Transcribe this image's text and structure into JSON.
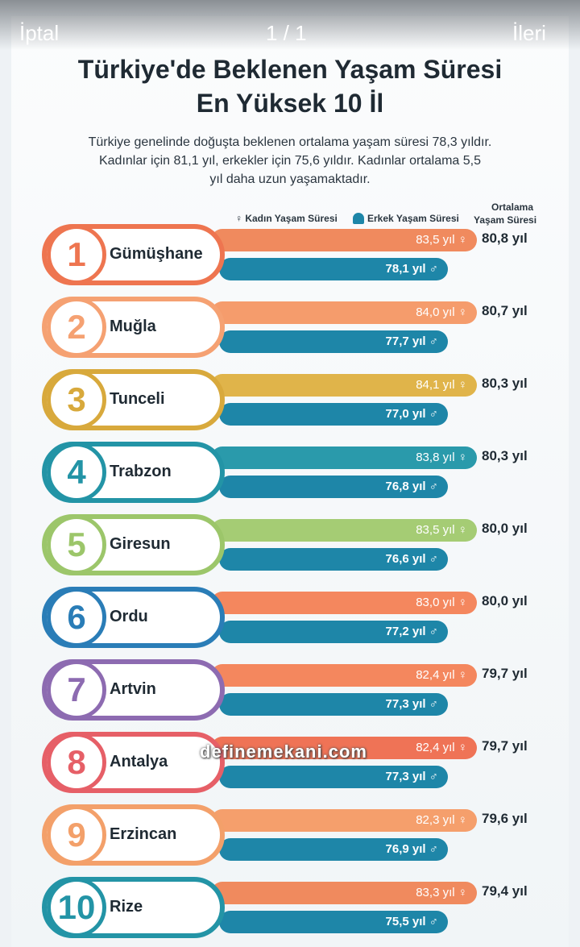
{
  "toolbar": {
    "cancel": "İptal",
    "counter": "1 / 1",
    "next": "İleri"
  },
  "header": {
    "title_line1": "Türkiye'de Beklenen Yaşam Süresi",
    "title_line2": "En Yüksek 10 İl",
    "intro": [
      "Türkiye genelinde doğuşta beklenen ortalama yaşam süresi 78,3 yıldır.",
      "Kadınlar için 81,1 yıl, erkekler için 75,6 yıldır. Kadınlar ortalama 5,5",
      "yıl daha uzun yaşamaktadır."
    ]
  },
  "legend": {
    "female": "♀ Kadın Yaşam Süresi",
    "male": "Erkek Yaşam Süresi",
    "average": [
      "Ortalama",
      "Yaşam Süresi"
    ]
  },
  "rows": [
    {
      "rank": "1",
      "province": "Gümüşhane",
      "female": "83,5 yıl ♀",
      "male": "78,1 yıl ♂",
      "average": "80,8 yıl",
      "color": "#ee7550",
      "bar_color": "#f08a5e"
    },
    {
      "rank": "2",
      "province": "Muğla",
      "female": "84,0 yıl ♀",
      "male": "77,7 yıl ♂",
      "average": "80,7 yıl",
      "color": "#f5a172",
      "bar_color": "#f59c6c"
    },
    {
      "rank": "3",
      "province": "Tunceli",
      "female": "84,1 yıl ♀",
      "male": "77,0 yıl ♂",
      "average": "80,3 yıl",
      "color": "#d8a93c",
      "bar_color": "#e0b44a"
    },
    {
      "rank": "4",
      "province": "Trabzon",
      "female": "83,8 yıl ♀",
      "male": "76,8 yıl ♂",
      "average": "80,3 yıl",
      "color": "#2394a6",
      "bar_color": "#2a9aab"
    },
    {
      "rank": "5",
      "province": "Giresun",
      "female": "83,5 yıl ♀",
      "male": "76,6 yıl ♂",
      "average": "80,0 yıl",
      "color": "#9cc66a",
      "bar_color": "#a5cc74"
    },
    {
      "rank": "6",
      "province": "Ordu",
      "female": "83,0 yıl ♀",
      "male": "77,2 yıl ♂",
      "average": "80,0 yıl",
      "color": "#2a7db7",
      "bar_color": "#f4875e"
    },
    {
      "rank": "7",
      "province": "Artvin",
      "female": "82,4 yıl ♀",
      "male": "77,3 yıl ♂",
      "average": "79,7 yıl",
      "color": "#8d6bb1",
      "bar_color": "#f4875e"
    },
    {
      "rank": "8",
      "province": "Antalya",
      "female": "82,4 yıl ♀",
      "male": "77,3 yıl ♂",
      "average": "79,7 yıl",
      "color": "#e65f67",
      "bar_color": "#ef7356"
    },
    {
      "rank": "9",
      "province": "Erzincan",
      "female": "82,3 yıl ♀",
      "male": "76,9 yıl ♂",
      "average": "79,6 yıl",
      "color": "#f3a06a",
      "bar_color": "#f59f6c"
    },
    {
      "rank": "10",
      "province": "Rize",
      "female": "83,3 yıl ♀",
      "male": "75,5 yıl ♂",
      "average": "79,4 yıl",
      "color": "#2394a6",
      "bar_color": "#f08a5e"
    }
  ],
  "watermark": "definemekani.com"
}
